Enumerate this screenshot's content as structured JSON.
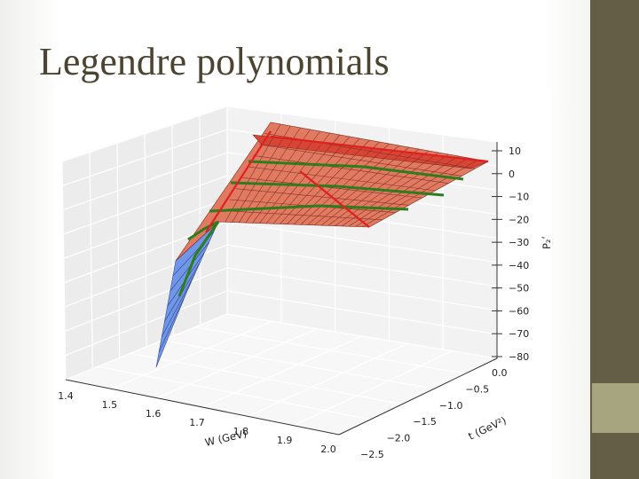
{
  "slide": {
    "title": "Legendre polynomials"
  },
  "chart_data": {
    "type": "surface3d",
    "title": "",
    "xlabel": "W (GeV)",
    "ylabel": "t (GeV²)",
    "zlabel": "P₂ʹ",
    "xlim": [
      1.4,
      2.0
    ],
    "ylim": [
      -2.5,
      0.0
    ],
    "zlim": [
      -80,
      15
    ],
    "x_ticks": [
      "1.4",
      "1.5",
      "1.6",
      "1.7",
      "1.8",
      "1.9",
      "2.0"
    ],
    "y_ticks": [
      "−2.5",
      "−2.0",
      "−1.5",
      "−1.0",
      "−0.5",
      "0.0"
    ],
    "z_ticks": [
      "10",
      "0",
      "−10",
      "−20",
      "−30",
      "−40",
      "−50",
      "−60",
      "−70",
      "−80"
    ],
    "surface_color_positive": "#d9503f",
    "surface_color_negative": "#6f96e8",
    "highlight_lines": [
      {
        "color": "#2e7d1d",
        "direction": "constant-W"
      },
      {
        "color": "#e02020",
        "direction": "constant-t"
      }
    ],
    "grid": true
  }
}
